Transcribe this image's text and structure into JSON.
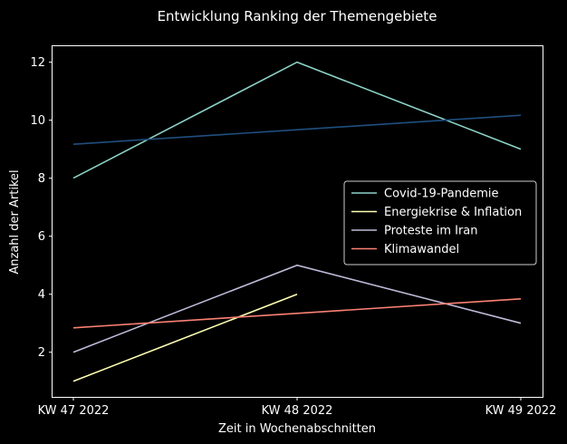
{
  "chart_data": {
    "type": "line",
    "title": "Entwicklung Ranking der Themengebiete",
    "xlabel": "Zeit in Wochenabschnitten",
    "ylabel": "Anzahl der Artikel",
    "categories": [
      "KW 47 2022",
      "KW 48 2022",
      "KW 49 2022"
    ],
    "yticks": [
      "2",
      "4",
      "6",
      "8",
      "10",
      "12"
    ],
    "ylim": [
      0.46,
      12.55
    ],
    "grid": false,
    "legend_position": "center-right",
    "background": "#000000",
    "series": [
      {
        "name": "Covid-19-Pandemie",
        "values": [
          8,
          12,
          9
        ],
        "color": "#8dd3c7",
        "in_legend": true
      },
      {
        "name": "Energiekrise & Inflation",
        "values": [
          1,
          4,
          null
        ],
        "color": "#feffb3",
        "in_legend": true
      },
      {
        "name": "Proteste im Iran",
        "values": [
          2,
          5,
          3
        ],
        "color": "#bfbbd9",
        "in_legend": true
      },
      {
        "name": "Klimawandel",
        "values": [
          2.84,
          3.34,
          3.84
        ],
        "color": "#fa8174",
        "in_legend": true
      },
      {
        "values": [
          9.17,
          9.67,
          10.17
        ],
        "color": "#1f4f7f",
        "in_legend": false
      }
    ]
  }
}
